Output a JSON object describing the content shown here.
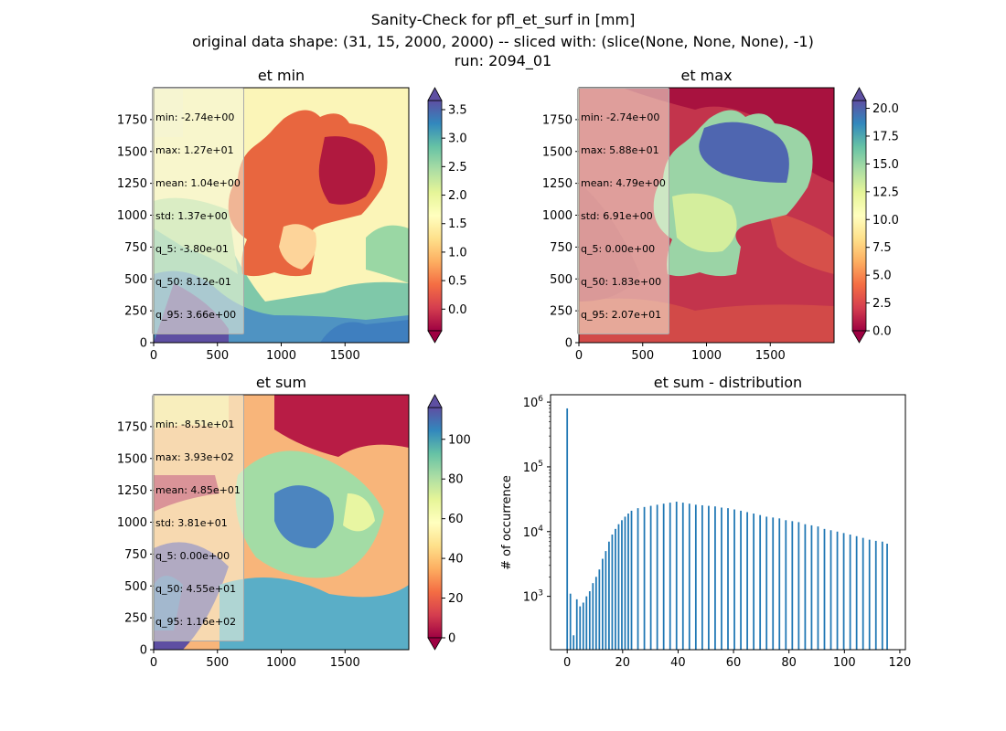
{
  "figure": {
    "title_line1": "Sanity-Check for pfl_et_surf in [mm]",
    "title_line2": "original data shape: (31, 15, 2000, 2000) -- sliced with: (slice(None, None, None), -1)",
    "title_line3": "run: 2094_01"
  },
  "colors": {
    "map_palette": "Spectral",
    "histogram_bar": "#1f77b4",
    "stats_box_bg": "#f5f5dc"
  },
  "chart_data": [
    {
      "type": "heatmap",
      "title": "et min",
      "x_ticks": [
        "0",
        "500",
        "1000",
        "1500"
      ],
      "y_ticks": [
        "0",
        "250",
        "500",
        "750",
        "1000",
        "1250",
        "1500",
        "1750"
      ],
      "xlim": [
        0,
        2000
      ],
      "ylim": [
        0,
        2000
      ],
      "colorbar": {
        "ticks": [
          "0.0",
          "0.5",
          "1.0",
          "1.5",
          "2.0",
          "2.5",
          "3.0",
          "3.5"
        ],
        "tick_values": [
          0,
          0.5,
          1.0,
          1.5,
          2.0,
          2.5,
          3.0,
          3.5
        ],
        "range": [
          -0.38,
          3.66
        ],
        "extend": "both",
        "colormap": "Spectral"
      },
      "stats": [
        "min: -2.74e+00",
        "max: 1.27e+01",
        "mean: 1.04e+00",
        "std: 1.37e+00",
        "q_5: -3.80e-01",
        "q_50: 8.12e-01",
        "q_95: 3.66e+00"
      ]
    },
    {
      "type": "heatmap",
      "title": "et max",
      "x_ticks": [
        "0",
        "500",
        "1000",
        "1500"
      ],
      "y_ticks": [
        "0",
        "250",
        "500",
        "750",
        "1000",
        "1250",
        "1500",
        "1750"
      ],
      "xlim": [
        0,
        2000
      ],
      "ylim": [
        0,
        2000
      ],
      "colorbar": {
        "ticks": [
          "0.0",
          "2.5",
          "5.0",
          "7.5",
          "10.0",
          "12.5",
          "15.0",
          "17.5",
          "20.0"
        ],
        "tick_values": [
          0,
          2.5,
          5.0,
          7.5,
          10.0,
          12.5,
          15.0,
          17.5,
          20.0
        ],
        "range": [
          0,
          20.7
        ],
        "extend": "both",
        "colormap": "Spectral"
      },
      "stats": [
        "min: -2.74e+00",
        "max: 5.88e+01",
        "mean: 4.79e+00",
        "std: 6.91e+00",
        "q_5: 0.00e+00",
        "q_50: 1.83e+00",
        "q_95: 2.07e+01"
      ]
    },
    {
      "type": "heatmap",
      "title": "et sum",
      "x_ticks": [
        "0",
        "500",
        "1000",
        "1500"
      ],
      "y_ticks": [
        "0",
        "250",
        "500",
        "750",
        "1000",
        "1250",
        "1500",
        "1750"
      ],
      "xlim": [
        0,
        2000
      ],
      "ylim": [
        0,
        2000
      ],
      "colorbar": {
        "ticks": [
          "0",
          "20",
          "40",
          "60",
          "80",
          "100"
        ],
        "tick_values": [
          0,
          20,
          40,
          60,
          80,
          100
        ],
        "range": [
          0,
          116
        ],
        "extend": "both",
        "colormap": "Spectral"
      },
      "stats": [
        "min: -8.51e+01",
        "max: 3.93e+02",
        "mean: 4.85e+01",
        "std: 3.81e+01",
        "q_5: 0.00e+00",
        "q_50: 4.55e+01",
        "q_95: 1.16e+02"
      ]
    },
    {
      "type": "bar",
      "title": "et sum - distribution",
      "xlabel": "",
      "ylabel": "# of occurrence",
      "y_scale": "log",
      "xlim": [
        -6,
        122
      ],
      "ylim": [
        150,
        1300000
      ],
      "x_ticks": [
        "0",
        "20",
        "40",
        "60",
        "80",
        "100",
        "120"
      ],
      "x_tick_values": [
        0,
        20,
        40,
        60,
        80,
        100,
        120
      ],
      "y_ticks": [
        {
          "base": "10",
          "exp": "3"
        },
        {
          "base": "10",
          "exp": "4"
        },
        {
          "base": "10",
          "exp": "5"
        },
        {
          "base": "10",
          "exp": "6"
        }
      ],
      "y_tick_values": [
        1000,
        10000,
        100000,
        1000000
      ],
      "bin_width": 0.58,
      "x": [
        0.0,
        1.16,
        2.32,
        3.48,
        4.64,
        5.8,
        6.96,
        8.12,
        9.28,
        10.44,
        11.6,
        12.76,
        13.92,
        15.08,
        16.24,
        17.4,
        18.56,
        19.72,
        20.88,
        22.04,
        23.2,
        25.52,
        27.84,
        30.16,
        32.48,
        34.8,
        37.12,
        39.44,
        41.76,
        44.08,
        46.4,
        48.72,
        51.04,
        53.36,
        55.68,
        58.0,
        60.32,
        62.64,
        64.96,
        67.28,
        69.6,
        71.92,
        74.24,
        76.56,
        78.88,
        81.2,
        83.52,
        85.84,
        88.16,
        90.48,
        92.8,
        95.12,
        97.44,
        99.76,
        102.08,
        104.4,
        106.72,
        109.04,
        111.36,
        113.68,
        115.42
      ],
      "values": [
        800000,
        1100,
        250,
        900,
        700,
        800,
        1000,
        1200,
        1600,
        2000,
        2600,
        3800,
        5000,
        7000,
        9000,
        11000,
        13000,
        15000,
        17000,
        19000,
        21000,
        23000,
        24000,
        25000,
        26000,
        27000,
        28000,
        29000,
        28000,
        27000,
        26000,
        25500,
        25000,
        24500,
        23500,
        23000,
        22000,
        21000,
        20000,
        19000,
        18000,
        17000,
        16500,
        16000,
        15000,
        14500,
        14000,
        13000,
        12500,
        12000,
        11000,
        10500,
        10000,
        9500,
        9000,
        8500,
        8000,
        7500,
        7200,
        7000,
        6500
      ]
    }
  ]
}
